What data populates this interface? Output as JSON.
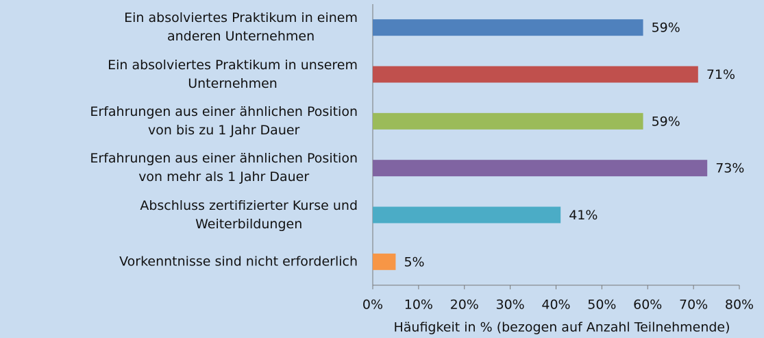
{
  "chart_data": {
    "type": "bar",
    "orientation": "horizontal",
    "categories": [
      "Ein absolviertes Praktikum in einem\nanderen Unternehmen",
      "Ein absolviertes Praktikum in unserem\nUnternehmen",
      "Erfahrungen aus einer ähnlichen Position\nvon bis zu 1 Jahr Dauer",
      "Erfahrungen aus einer ähnlichen Position\nvon mehr als 1 Jahr Dauer",
      "Abschluss zertifizierter Kurse und\nWeiterbildungen",
      "Vorkenntnisse sind nicht erforderlich"
    ],
    "values": [
      59,
      71,
      59,
      73,
      41,
      5
    ],
    "value_labels": [
      "59%",
      "71%",
      "59%",
      "73%",
      "41%",
      "5%"
    ],
    "colors": [
      "#4f81bd",
      "#c0504d",
      "#9bbb59",
      "#8064a2",
      "#4bacc6",
      "#f79646"
    ],
    "xlim": [
      0,
      80
    ],
    "xticks": [
      {
        "value": 0,
        "label": "0%"
      },
      {
        "value": 10,
        "label": "10%"
      },
      {
        "value": 20,
        "label": "20%"
      },
      {
        "value": 30,
        "label": "30%"
      },
      {
        "value": 40,
        "label": "40%"
      },
      {
        "value": 50,
        "label": "50%"
      },
      {
        "value": 60,
        "label": "60%"
      },
      {
        "value": 70,
        "label": "70%"
      },
      {
        "value": 80,
        "label": "80%"
      }
    ],
    "x_label": "Häufigkeit in % (bezogen auf Anzahl Teilnehmende)"
  }
}
